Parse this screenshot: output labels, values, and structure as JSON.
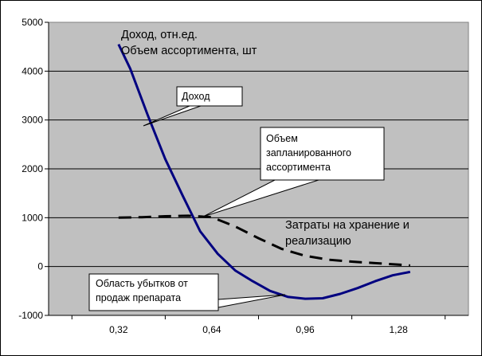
{
  "chart_data": {
    "type": "line",
    "title_lines": [
      "Доход, отн.ед.",
      "Объем ассортимента, шт"
    ],
    "xlabel": "",
    "ylabel": "",
    "ylim": [
      -1000,
      5000
    ],
    "xlim": [
      0.08,
      1.52
    ],
    "y_ticks": [
      -1000,
      0,
      1000,
      2000,
      3000,
      4000,
      5000
    ],
    "x_ticks": [
      0.32,
      0.64,
      0.96,
      1.28
    ],
    "x_tick_labels": [
      "0,32",
      "0,64",
      "0,96",
      "1,28"
    ],
    "grid": "horizontal",
    "background": "#c0c0c0",
    "series": [
      {
        "label_key": "income",
        "color": "#000080",
        "style": "solid",
        "x": [
          0.32,
          0.36,
          0.42,
          0.48,
          0.54,
          0.6,
          0.66,
          0.72,
          0.78,
          0.84,
          0.9,
          0.96,
          1.02,
          1.08,
          1.14,
          1.2,
          1.26,
          1.32
        ],
        "y": [
          4550,
          4050,
          3100,
          2200,
          1450,
          720,
          260,
          -80,
          -300,
          -500,
          -620,
          -660,
          -650,
          -560,
          -440,
          -300,
          -180,
          -110
        ]
      },
      {
        "label_key": "costs",
        "color": "#000000",
        "style": "dashed",
        "x": [
          0.32,
          0.4,
          0.48,
          0.56,
          0.64,
          0.72,
          0.8,
          0.88,
          0.96,
          1.04,
          1.12,
          1.2,
          1.28,
          1.32
        ],
        "y": [
          1000,
          1010,
          1030,
          1040,
          1010,
          820,
          580,
          360,
          220,
          140,
          100,
          70,
          40,
          20
        ]
      }
    ],
    "callouts": {
      "income": "Доход",
      "plan": [
        "Объем",
        "запланированного",
        "ассортимента"
      ],
      "loss": [
        "Область убытков от",
        "продаж препарата"
      ]
    },
    "annotation_costs": [
      "Затраты на хранение и",
      "реализацию"
    ]
  }
}
